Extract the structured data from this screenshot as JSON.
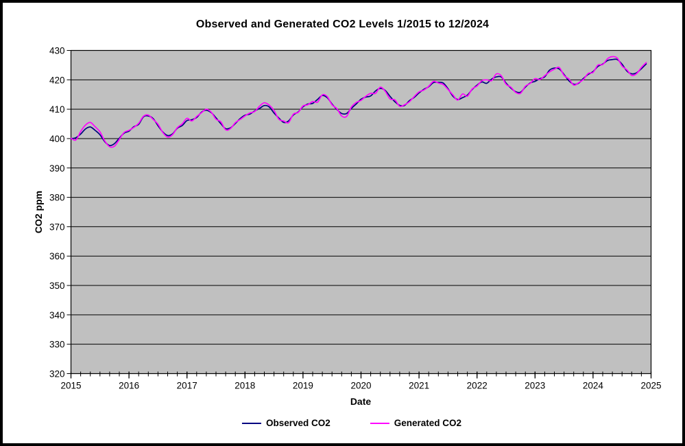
{
  "title": "Observed and Generated CO2 Levels 1/2015 to 12/2024",
  "colors": {
    "plot_bg": "#c0c0c0",
    "grid": "#000000",
    "axis": "#000000",
    "text": "#000000",
    "observed": "#000080",
    "generated": "#ff00ff",
    "canvas_border": "#000000"
  },
  "chart_data": {
    "type": "line",
    "title": "Observed and Generated CO2 Levels 1/2015 to 12/2024",
    "xlabel": "Date",
    "ylabel": "CO2 ppm",
    "xlim": [
      2015,
      2025
    ],
    "ylim": [
      320,
      430
    ],
    "xticks": [
      2015,
      2016,
      2017,
      2018,
      2019,
      2020,
      2021,
      2022,
      2023,
      2024,
      2025
    ],
    "yticks": [
      320,
      330,
      340,
      350,
      360,
      370,
      380,
      390,
      400,
      410,
      420,
      430
    ],
    "grid": "horizontal",
    "legend_position": "bottom",
    "x_start_year": 2015,
    "x_step_months": 1,
    "minor_xtick_months": 2,
    "series": [
      {
        "name": "Observed CO2",
        "color": "#000080",
        "values": [
          399.98,
          400.28,
          401.54,
          403.28,
          403.96,
          402.8,
          401.3,
          398.93,
          397.63,
          398.29,
          400.16,
          401.85,
          402.52,
          404.04,
          404.83,
          407.42,
          407.7,
          406.81,
          404.39,
          402.25,
          401.03,
          401.57,
          403.53,
          404.42,
          406.13,
          406.42,
          407.18,
          409.0,
          409.65,
          408.84,
          407.07,
          405.07,
          403.38,
          403.64,
          405.12,
          406.81,
          407.96,
          408.32,
          409.41,
          410.24,
          411.24,
          410.79,
          408.71,
          406.99,
          405.51,
          406.0,
          408.02,
          409.07,
          410.83,
          411.75,
          411.97,
          413.32,
          414.66,
          413.92,
          411.77,
          409.95,
          408.54,
          408.52,
          410.25,
          411.76,
          413.4,
          414.11,
          414.51,
          416.21,
          417.07,
          416.39,
          414.38,
          412.55,
          411.29,
          411.28,
          412.89,
          414.02,
          415.52,
          416.75,
          417.64,
          419.05,
          419.13,
          418.94,
          416.96,
          414.47,
          413.3,
          413.93,
          414.8,
          416.71,
          418.19,
          419.28,
          418.81,
          420.23,
          420.99,
          420.99,
          418.9,
          417.19,
          415.95,
          415.78,
          417.51,
          418.95,
          419.47,
          420.41,
          421.0,
          423.28,
          424.0,
          423.68,
          421.83,
          419.68,
          418.51,
          418.82,
          420.46,
          421.86,
          422.8,
          424.55,
          425.38,
          426.57,
          426.9,
          426.91,
          425.31,
          422.99,
          422.03,
          422.38,
          423.77,
          425.4
        ]
      },
      {
        "name": "Generated CO2",
        "color": "#ff00ff",
        "values": [
          400.1,
          399.5,
          402.4,
          404.6,
          405.5,
          404.0,
          402.3,
          399.2,
          397.2,
          397.4,
          399.7,
          402.1,
          402.8,
          403.8,
          405.2,
          407.6,
          408.0,
          406.5,
          404.9,
          402.1,
          400.5,
          401.3,
          403.7,
          405.0,
          406.9,
          406.0,
          407.5,
          408.8,
          410.0,
          409.0,
          406.6,
          405.7,
          403.0,
          403.4,
          405.4,
          406.5,
          407.7,
          408.7,
          409.2,
          411.0,
          412.2,
          411.4,
          409.6,
          406.6,
          406.0,
          405.4,
          408.3,
          408.9,
          411.1,
          411.5,
          412.6,
          412.4,
          414.9,
          414.3,
          411.5,
          410.2,
          407.7,
          407.5,
          410.7,
          412.3,
          413.0,
          414.4,
          415.4,
          415.4,
          417.5,
          416.1,
          413.5,
          413.2,
          411.0,
          411.5,
          412.5,
          414.3,
          415.9,
          416.5,
          417.8,
          419.5,
          418.9,
          418.4,
          416.7,
          414.9,
          413.1,
          415.2,
          414.4,
          416.9,
          417.9,
          419.7,
          420.0,
          419.7,
          422.0,
          421.4,
          418.5,
          417.5,
          415.7,
          415.4,
          417.8,
          418.8,
          420.4,
          420.1,
          421.4,
          422.7,
          423.6,
          424.2,
          421.5,
          420.3,
          418.2,
          419.0,
          420.1,
          422.2,
          422.5,
          425.0,
          425.2,
          427.2,
          427.9,
          427.4,
          424.7,
          423.4,
          421.5,
          422.1,
          424.2,
          425.9
        ]
      }
    ]
  }
}
